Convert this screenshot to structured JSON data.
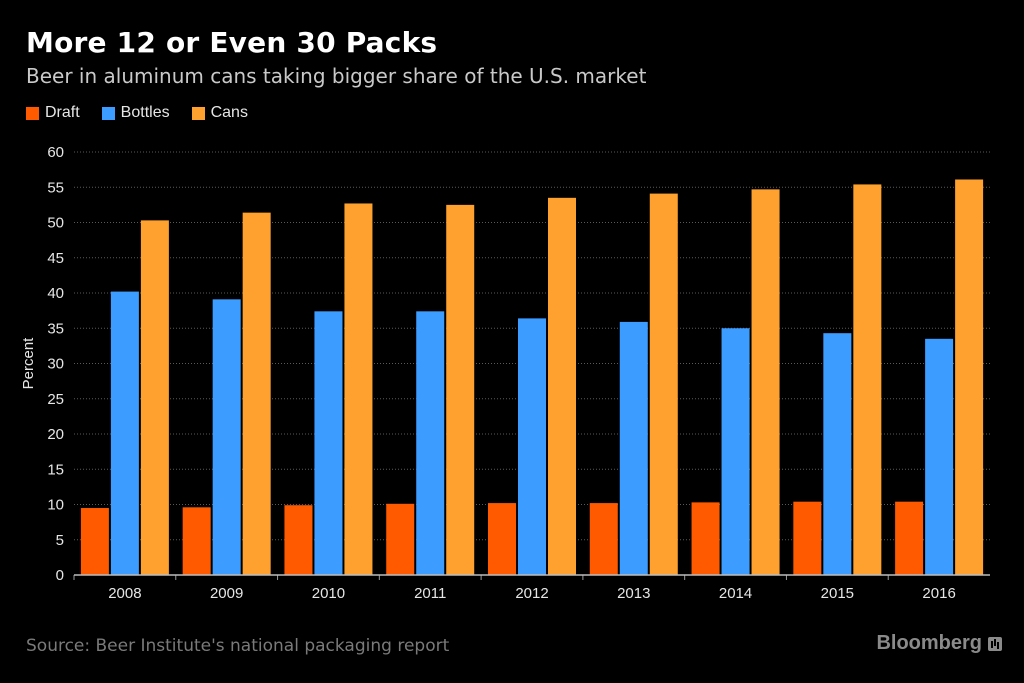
{
  "title": "More 12 or Even 30 Packs",
  "subtitle": "Beer in aluminum cans taking bigger share of the U.S. market",
  "source": "Source: Beer Institute's national packaging report",
  "brand": "Bloomberg",
  "chart_data": {
    "type": "bar",
    "categories": [
      "2008",
      "2009",
      "2010",
      "2011",
      "2012",
      "2013",
      "2014",
      "2015",
      "2016"
    ],
    "series": [
      {
        "name": "Draft",
        "color": "#ff5a00",
        "values": [
          9.5,
          9.6,
          9.9,
          10.1,
          10.2,
          10.2,
          10.3,
          10.4,
          10.4
        ]
      },
      {
        "name": "Bottles",
        "color": "#3c9cff",
        "values": [
          40.2,
          39.1,
          37.4,
          37.4,
          36.4,
          35.9,
          35.0,
          34.3,
          33.5
        ]
      },
      {
        "name": "Cans",
        "color": "#ffa12e",
        "values": [
          50.3,
          51.4,
          52.7,
          52.5,
          53.5,
          54.1,
          54.7,
          55.4,
          56.1
        ]
      }
    ],
    "ylabel": "Percent",
    "xlabel": "",
    "ylim": [
      0,
      60
    ],
    "yticks": [
      0,
      5,
      10,
      15,
      20,
      25,
      30,
      35,
      40,
      45,
      50,
      55,
      60
    ],
    "grid": true,
    "legend_position": "top-left"
  }
}
